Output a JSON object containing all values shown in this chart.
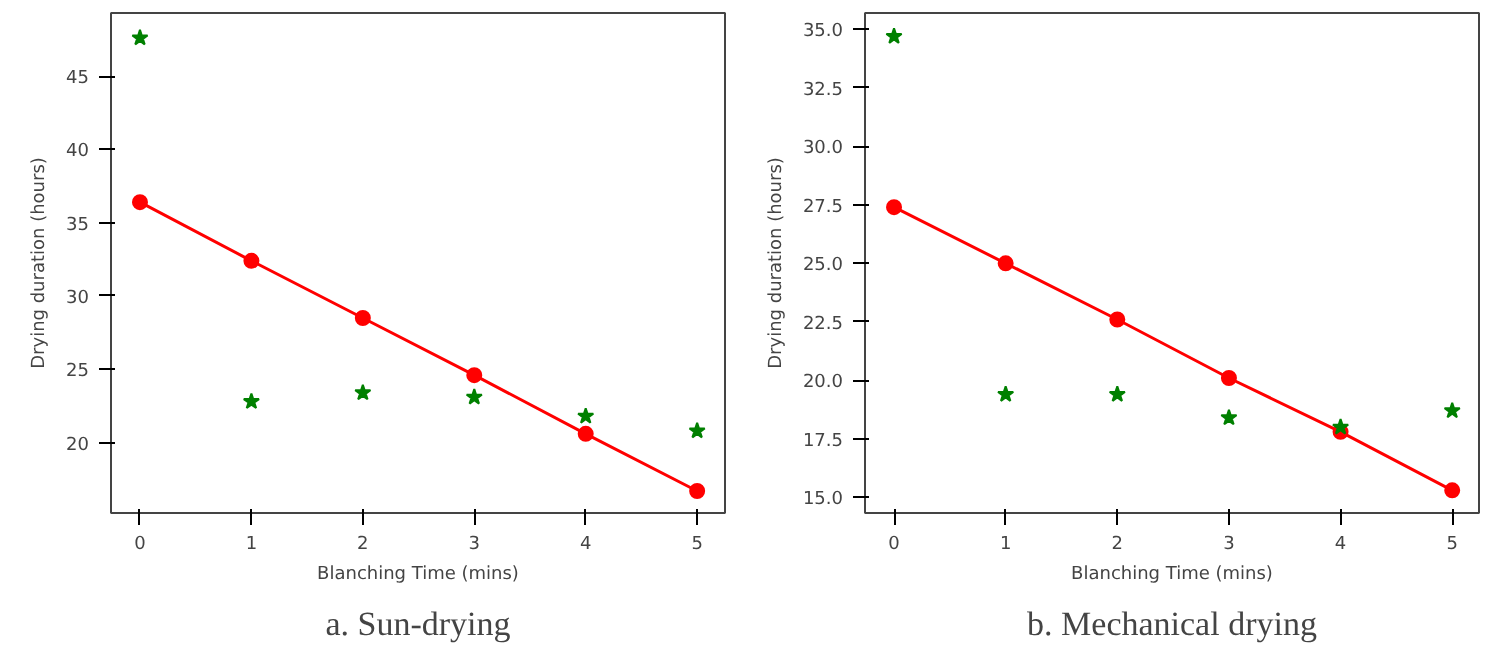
{
  "chart_data": [
    {
      "type": "scatter",
      "title": "a. Sun-drying",
      "xlabel": "Blanching Time (mins)",
      "ylabel": "Drying duration (hours)",
      "x": [
        0,
        1,
        2,
        3,
        4,
        5
      ],
      "xlim": [
        -0.26,
        5.25
      ],
      "xticks": [
        0,
        1,
        2,
        3,
        4,
        5
      ],
      "ylim": [
        15.2,
        49.3
      ],
      "yticks": [
        20,
        25,
        30,
        35,
        40,
        45
      ],
      "grid": false,
      "series": [
        {
          "marker": "star",
          "color": "#008000",
          "values": [
            47.6,
            22.8,
            23.4,
            23.1,
            21.8,
            20.8
          ]
        },
        {
          "type": "line",
          "marker": "circle",
          "line_style": "solid",
          "color": "#ff0000",
          "values": [
            36.4,
            32.4,
            28.5,
            24.6,
            20.6,
            16.7
          ]
        }
      ]
    },
    {
      "type": "scatter",
      "title": "b. Mechanical drying",
      "xlabel": "Blanching Time (mins)",
      "ylabel": "Drying duration (hours)",
      "x": [
        0,
        1,
        2,
        3,
        4,
        5
      ],
      "xlim": [
        -0.26,
        5.24
      ],
      "xticks": [
        0,
        1,
        2,
        3,
        4,
        5
      ],
      "ylim": [
        14.33,
        35.7
      ],
      "yticks": [
        {
          "value": 15,
          "label": "15.0"
        },
        17.5,
        {
          "value": 20,
          "label": "20.0"
        },
        22.5,
        {
          "value": 25,
          "label": "25.0"
        },
        27.5,
        {
          "value": 30,
          "label": "30.0"
        },
        32.5,
        {
          "value": 35,
          "label": "35.0"
        }
      ],
      "grid": false,
      "series": [
        {
          "marker": "star",
          "color": "#008000",
          "values": [
            34.7,
            19.4,
            19.4,
            18.4,
            18.0,
            18.7
          ]
        },
        {
          "type": "line",
          "marker": "circle",
          "line_style": "solid",
          "color": "#ff0000",
          "values": [
            27.4,
            25.0,
            22.6,
            20.1,
            17.8,
            15.3
          ]
        }
      ]
    }
  ]
}
